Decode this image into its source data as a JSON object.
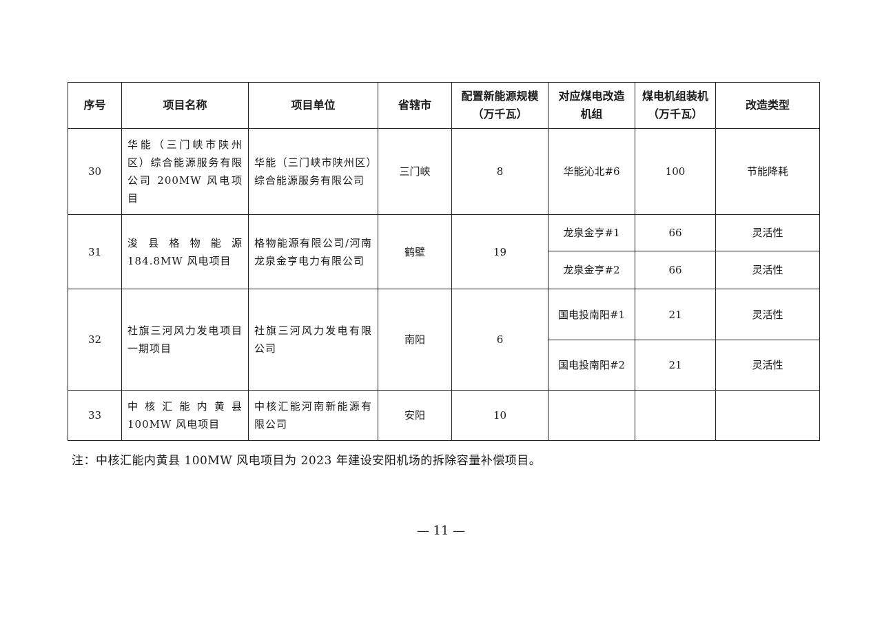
{
  "table": {
    "headers": [
      "序号",
      "项目名称",
      "项目单位",
      "省辖市",
      "配置新能源规模（万千瓦）",
      "对应煤电改造机组",
      "煤电机组装机（万千瓦）",
      "改造类型"
    ],
    "rows": [
      {
        "no": "30",
        "name": "华能（三门峡市陕州区）综合能源服务有限公司 200MW 风电项目",
        "unit": "华能（三门峡市陕州区）综合能源服务有限公司",
        "city": "三门峡",
        "scale": "8",
        "units": [
          {
            "unit": "华能沁北#6",
            "capacity": "100",
            "type": "节能降耗"
          }
        ]
      },
      {
        "no": "31",
        "name": "浚县格物能源184.8MW 风电项目",
        "unit": "格物能源有限公司/河南龙泉金亨电力有限公司",
        "city": "鹤壁",
        "scale": "19",
        "units": [
          {
            "unit": "龙泉金亨#1",
            "capacity": "66",
            "type": "灵活性"
          },
          {
            "unit": "龙泉金亨#2",
            "capacity": "66",
            "type": "灵活性"
          }
        ]
      },
      {
        "no": "32",
        "name": "社旗三河风力发电项目一期项目",
        "unit": "社旗三河风力发电有限公司",
        "city": "南阳",
        "scale": "6",
        "units": [
          {
            "unit": "国电投南阳#1",
            "capacity": "21",
            "type": "灵活性"
          },
          {
            "unit": "国电投南阳#2",
            "capacity": "21",
            "type": "灵活性"
          }
        ]
      },
      {
        "no": "33",
        "name": "中核汇能内黄县100MW 风电项目",
        "unit": "中核汇能河南新能源有限公司",
        "city": "安阳",
        "scale": "10",
        "units": [
          {
            "unit": "",
            "capacity": "",
            "type": ""
          }
        ]
      }
    ]
  },
  "note": "注：中核汇能内黄县 100MW 风电项目为 2023 年建设安阳机场的拆除容量补偿项目。",
  "page_number": "— 11 —"
}
